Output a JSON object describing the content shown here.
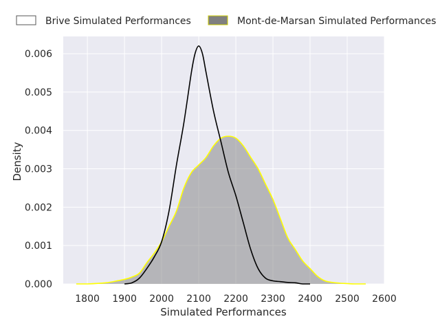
{
  "chart_data": {
    "type": "area",
    "xlabel": "Simulated Performances",
    "ylabel": "Density",
    "xlim": [
      1735,
      2600
    ],
    "ylim": [
      0,
      0.00645
    ],
    "xticks": [
      1800,
      1900,
      2000,
      2100,
      2200,
      2300,
      2400,
      2500,
      2600
    ],
    "xtick_labels": [
      "1800",
      "1900",
      "2000",
      "2100",
      "2200",
      "2300",
      "2400",
      "2500",
      "2600"
    ],
    "yticks": [
      0,
      0.001,
      0.002,
      0.003,
      0.004,
      0.005,
      0.006
    ],
    "ytick_labels": [
      "0.000",
      "0.001",
      "0.002",
      "0.003",
      "0.004",
      "0.005",
      "0.006"
    ],
    "grid": true,
    "legend_position": "top",
    "series": [
      {
        "name": "Brive Simulated Performances",
        "style": "line",
        "color": "#000000",
        "fill": "none",
        "x": [
          1900,
          1920,
          1940,
          1960,
          1980,
          2000,
          2020,
          2040,
          2060,
          2080,
          2090,
          2100,
          2110,
          2120,
          2140,
          2160,
          2180,
          2200,
          2220,
          2240,
          2260,
          2280,
          2300,
          2320,
          2340,
          2360,
          2380,
          2400
        ],
        "y": [
          0.0,
          3e-05,
          0.00015,
          0.0004,
          0.0007,
          0.0011,
          0.0019,
          0.0031,
          0.0042,
          0.0055,
          0.006,
          0.0062,
          0.006,
          0.0055,
          0.0045,
          0.0037,
          0.0029,
          0.0023,
          0.0016,
          0.0009,
          0.0004,
          0.00015,
          8e-05,
          6e-05,
          4e-05,
          3e-05,
          0.0,
          0.0
        ]
      },
      {
        "name": "Mont-de-Marsan Simulated Performances",
        "style": "area",
        "color": "#ffff00",
        "fill": "#808080",
        "x": [
          1770,
          1800,
          1850,
          1880,
          1900,
          1920,
          1940,
          1960,
          1980,
          2000,
          2020,
          2040,
          2060,
          2080,
          2100,
          2120,
          2140,
          2160,
          2180,
          2200,
          2220,
          2240,
          2260,
          2280,
          2300,
          2320,
          2340,
          2360,
          2380,
          2400,
          2420,
          2440,
          2460,
          2480,
          2500,
          2520,
          2550
        ],
        "y": [
          0.0,
          0.0,
          3e-05,
          8e-05,
          0.00012,
          0.00018,
          0.00028,
          0.00055,
          0.0008,
          0.0011,
          0.0015,
          0.0019,
          0.0025,
          0.0029,
          0.0031,
          0.0033,
          0.0036,
          0.0038,
          0.00385,
          0.0038,
          0.0036,
          0.0033,
          0.003,
          0.0026,
          0.0022,
          0.0017,
          0.0012,
          0.0009,
          0.0006,
          0.0004,
          0.0002,
          8e-05,
          4e-05,
          2e-05,
          1e-05,
          0.0,
          0.0
        ]
      }
    ]
  }
}
